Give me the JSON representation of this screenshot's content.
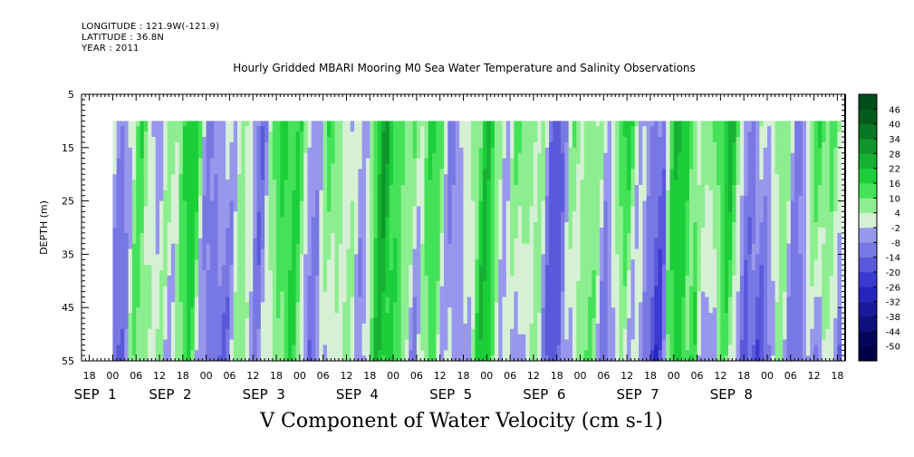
{
  "header": {
    "longitude": "LONGITUDE : 121.9W(-121.9)",
    "latitude": "LATITUDE : 36.8N",
    "year": "YEAR : 2011",
    "title": "Hourly Gridded MBARI Mooring M0 Sea Water Temperature and Salinity Observations"
  },
  "variable_title": "V Component of Water Velocity (cm s-1)",
  "chart_data": {
    "type": "heatmap",
    "title": "Hourly Gridded MBARI Mooring M0 Sea Water Temperature and Salinity Observations",
    "variable": "V Component of Water Velocity (cm s-1)",
    "ylabel": "DEPTH (m)",
    "ylim": [
      55,
      5
    ],
    "yticks": [
      5,
      15,
      25,
      35,
      45,
      55
    ],
    "data_depth_range": [
      10,
      55
    ],
    "x_range": [
      "2011-08-31 16:00",
      "2011-09-08 20:00"
    ],
    "data_time_range": [
      "2011-09-01 00:00",
      "2011-09-08 19:00"
    ],
    "x_hour_ticks": [
      "18",
      "00",
      "06",
      "12",
      "18",
      "00",
      "06",
      "12",
      "18",
      "00",
      "06",
      "12",
      "18",
      "00",
      "06",
      "12",
      "18",
      "00",
      "06",
      "12",
      "18",
      "00",
      "06",
      "12",
      "18",
      "00",
      "06",
      "12",
      "18",
      "00",
      "06",
      "12",
      "18"
    ],
    "x_day_labels": [
      "SEP  1",
      "SEP  2",
      "SEP  3",
      "SEP  4",
      "SEP  5",
      "SEP  6",
      "SEP  7",
      "SEP  8"
    ],
    "colorbar": {
      "levels": [
        -50,
        -44,
        -38,
        -32,
        -26,
        -20,
        -14,
        -8,
        -2,
        4,
        10,
        16,
        22,
        28,
        34,
        40,
        46
      ],
      "colors": {
        "deep_negative": "#00004a",
        "negative": "#2a2acc",
        "light_negative": "#a6a6f2",
        "neutral": "#d6f0d6",
        "light_positive": "#99f099",
        "positive": "#1fdc3c",
        "deep_positive": "#004d1a"
      }
    },
    "dominant_range": [
      -14,
      22
    ],
    "pattern": "Alternating vertical bands of positive (green) and negative (blue) velocity, mostly depth-coherent, with stronger negatives in deeper water late in the period"
  }
}
